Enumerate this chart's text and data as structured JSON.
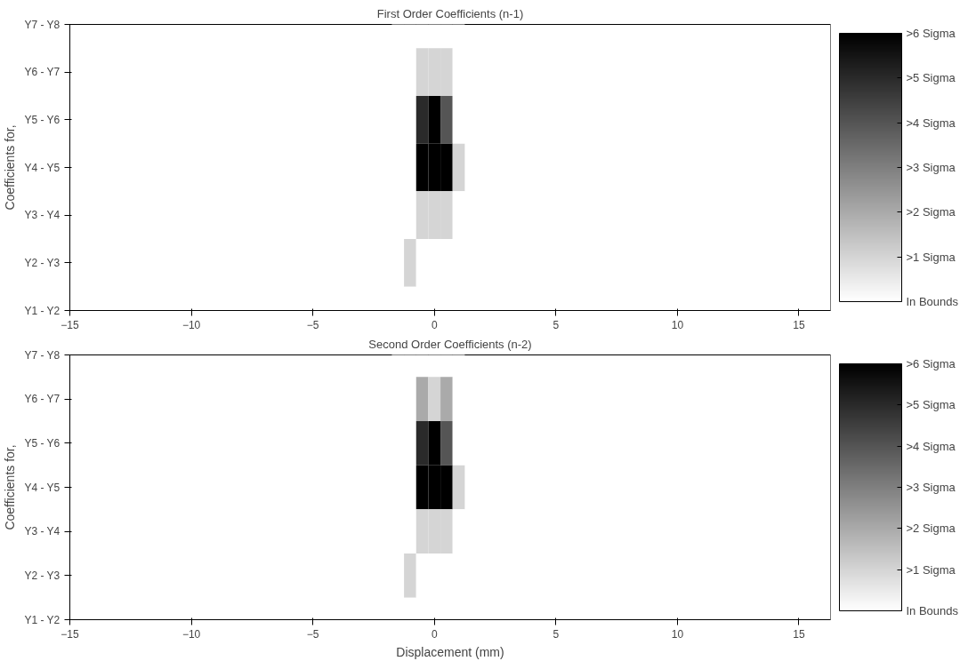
{
  "chart_data": [
    {
      "type": "heatmap",
      "title": "First Order Coefficients (n-1)",
      "ylabel": "Coefficients for,",
      "x": [
        -1.5,
        -1,
        -0.5,
        0,
        0.5,
        1
      ],
      "y_categories": [
        "Y7 - Y8",
        "Y6 - Y7",
        "Y5 - Y6",
        "Y4 - Y5",
        "Y3 - Y4",
        "Y2 - Y3",
        "Y1 - Y2"
      ],
      "cells": [
        [
          0,
          0,
          0,
          0,
          0,
          0
        ],
        [
          0,
          0,
          1,
          1,
          1,
          0
        ],
        [
          0,
          0,
          5,
          6,
          4,
          0
        ],
        [
          0,
          0,
          6,
          6,
          6,
          1
        ],
        [
          0,
          0,
          1,
          1,
          1,
          0
        ],
        [
          0,
          1,
          0,
          0,
          0,
          0
        ],
        [
          0,
          0,
          0,
          0,
          0,
          0
        ]
      ],
      "xlim": [
        -15,
        16.3
      ],
      "xticks": [
        -15,
        -10,
        -5,
        0,
        5,
        10,
        15
      ],
      "clim": [
        0,
        6
      ],
      "cticks": [
        {
          "value": 0,
          "label": "In Bounds"
        },
        {
          "value": 1,
          "label": ">1 Sigma"
        },
        {
          "value": 2,
          "label": ">2 Sigma"
        },
        {
          "value": 3,
          "label": ">3 Sigma"
        },
        {
          "value": 4,
          "label": ">4 Sigma"
        },
        {
          "value": 5,
          "label": ">5 Sigma"
        },
        {
          "value": 6,
          "label": ">6 Sigma"
        }
      ]
    },
    {
      "type": "heatmap",
      "title": "Second Order Coefficients (n-2)",
      "ylabel": "Coefficients for,",
      "xlabel": "Displacement (mm)",
      "x": [
        -1.5,
        -1,
        -0.5,
        0,
        0.5,
        1
      ],
      "y_categories": [
        "Y7 - Y8",
        "Y6 - Y7",
        "Y5 - Y6",
        "Y4 - Y5",
        "Y3 - Y4",
        "Y2 - Y3",
        "Y1 - Y2"
      ],
      "cells": [
        [
          0,
          0,
          0,
          0,
          0,
          0
        ],
        [
          0,
          0,
          2,
          1,
          2,
          0
        ],
        [
          0,
          0,
          5,
          6,
          4,
          0
        ],
        [
          0,
          0,
          6,
          6,
          6,
          1
        ],
        [
          0,
          0,
          1,
          1,
          1,
          0
        ],
        [
          0,
          1,
          0,
          0,
          0,
          0
        ],
        [
          0,
          0,
          0,
          0,
          0,
          0
        ]
      ],
      "xlim": [
        -15,
        16.3
      ],
      "xticks": [
        -15,
        -10,
        -5,
        0,
        5,
        10,
        15
      ],
      "clim": [
        0,
        6
      ],
      "cticks": [
        {
          "value": 0,
          "label": "In Bounds"
        },
        {
          "value": 1,
          "label": ">1 Sigma"
        },
        {
          "value": 2,
          "label": ">2 Sigma"
        },
        {
          "value": 3,
          "label": ">3 Sigma"
        },
        {
          "value": 4,
          "label": ">4 Sigma"
        },
        {
          "value": 5,
          "label": ">5 Sigma"
        },
        {
          "value": 6,
          "label": ">6 Sigma"
        }
      ]
    }
  ]
}
